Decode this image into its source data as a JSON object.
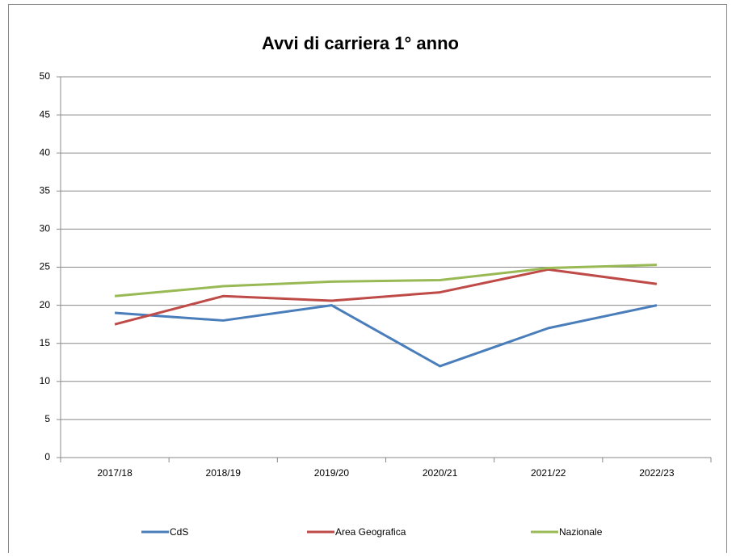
{
  "chart_data": {
    "type": "line",
    "title": "Avvi di carriera 1° anno",
    "categories": [
      "2017/18",
      "2018/19",
      "2019/20",
      "2020/21",
      "2021/22",
      "2022/23"
    ],
    "series": [
      {
        "name": "CdS",
        "color": "#4a7ebb",
        "values": [
          19,
          18,
          20,
          12,
          17,
          20
        ]
      },
      {
        "name": "Area Geografica",
        "color": "#be4b48",
        "values": [
          17.5,
          21.2,
          20.6,
          21.7,
          24.7,
          22.8
        ]
      },
      {
        "name": "Nazionale",
        "color": "#98b954",
        "values": [
          21.2,
          22.5,
          23.1,
          23.3,
          24.9,
          25.3
        ]
      }
    ],
    "ylim": [
      0,
      50
    ],
    "yticks": [
      0,
      5,
      10,
      15,
      20,
      25,
      30,
      35,
      40,
      45,
      50
    ],
    "grid": true,
    "legend": "bottom"
  }
}
